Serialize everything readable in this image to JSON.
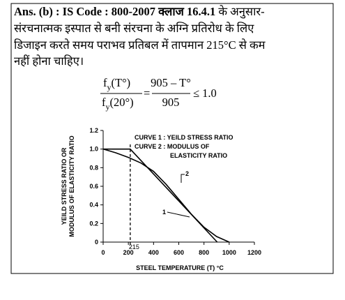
{
  "answer": {
    "lead": "Ans. (b) : IS Code : 800-2007 क्लाज 16.4.1",
    "lines": [
      " के अनुसार-",
      "संरचनात्मक इस्पात से बनी संरचना के अग्नि प्रतिरोध के लिए",
      "डिजाइन करते समय पराभव प्रतिबल में तापमान 215°C से कम",
      "नहीं होना चाहिए।"
    ]
  },
  "formula": {
    "num_f": "f",
    "num_sub": "y",
    "num_arg": "(T°)",
    "den_f": "f",
    "den_sub": "y",
    "den_arg": "(20°)",
    "eq": "=",
    "rhs_num": "905 – T°",
    "rhs_den": "905",
    "rel": "≤ 1.0"
  },
  "figure": {
    "legend": [
      "CURVE 1 : YEILD STRESS RATIO",
      "CURVE 2 : MODULUS OF",
      "ELASTICITY RATIO"
    ],
    "y_label": [
      "YEILD STRESS RATIO OR",
      "MODULUS OF ELASTICITY RATIO"
    ],
    "x_label": "STEEL TEMPERATURE (T) °C",
    "xlim": [
      0,
      1200
    ],
    "xticks": [
      0,
      200,
      400,
      600,
      800,
      1000,
      1200
    ],
    "ylim": [
      0,
      1.2
    ],
    "yticks": [
      0,
      0.2,
      0.4,
      0.6,
      0.8,
      {
        "value": 1,
        "label": "1.0"
      },
      1.2
    ],
    "marker": 215,
    "series": [
      {
        "name": "1",
        "x": [
          0,
          215,
          905
        ],
        "y": [
          1,
          1,
          0
        ]
      },
      {
        "name": "2",
        "x": [
          0,
          100,
          200,
          300,
          400,
          500,
          600,
          700,
          800,
          900,
          1000
        ],
        "y": [
          1,
          0.96,
          0.91,
          0.85,
          0.76,
          0.62,
          0.46,
          0.3,
          0.16,
          0.06,
          0
        ]
      }
    ]
  }
}
